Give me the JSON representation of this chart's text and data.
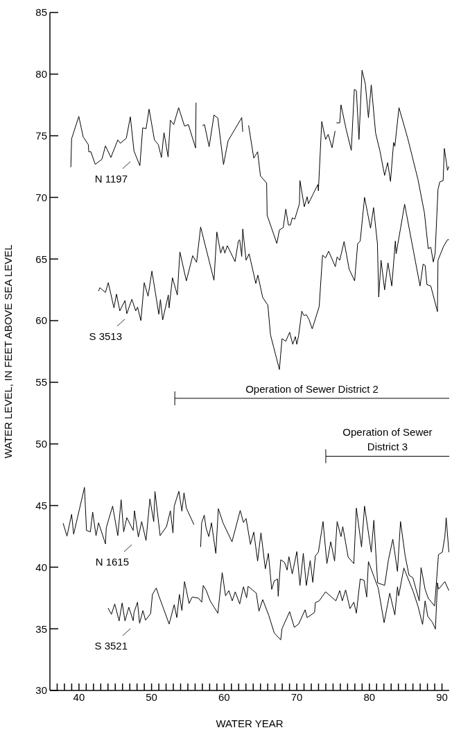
{
  "chart_data": {
    "type": "line",
    "xlabel": "WATER YEAR",
    "ylabel": "WATER LEVEL, IN FEET ABOVE SEA LEVEL",
    "xlim": [
      36,
      91
    ],
    "ylim": [
      30,
      85
    ],
    "xticks": [
      {
        "value": 37,
        "label": null
      },
      {
        "value": 38,
        "label": null
      },
      {
        "value": 39,
        "label": null
      },
      40,
      {
        "value": 41,
        "label": null
      },
      {
        "value": 42,
        "label": null
      },
      {
        "value": 43,
        "label": null
      },
      {
        "value": 44,
        "label": null
      },
      {
        "value": 45,
        "label": null
      },
      {
        "value": 46,
        "label": null
      },
      {
        "value": 47,
        "label": null
      },
      {
        "value": 48,
        "label": null
      },
      {
        "value": 49,
        "label": null
      },
      50,
      {
        "value": 51,
        "label": null
      },
      {
        "value": 52,
        "label": null
      },
      {
        "value": 53,
        "label": null
      },
      {
        "value": 54,
        "label": null
      },
      {
        "value": 55,
        "label": null
      },
      {
        "value": 56,
        "label": null
      },
      {
        "value": 57,
        "label": null
      },
      {
        "value": 58,
        "label": null
      },
      {
        "value": 59,
        "label": null
      },
      60,
      {
        "value": 61,
        "label": null
      },
      {
        "value": 62,
        "label": null
      },
      {
        "value": 63,
        "label": null
      },
      {
        "value": 64,
        "label": null
      },
      {
        "value": 65,
        "label": null
      },
      {
        "value": 66,
        "label": null
      },
      {
        "value": 67,
        "label": null
      },
      {
        "value": 68,
        "label": null
      },
      {
        "value": 69,
        "label": null
      },
      70,
      {
        "value": 71,
        "label": null
      },
      {
        "value": 72,
        "label": null
      },
      {
        "value": 73,
        "label": null
      },
      {
        "value": 74,
        "label": null
      },
      {
        "value": 75,
        "label": null
      },
      {
        "value": 76,
        "label": null
      },
      {
        "value": 77,
        "label": null
      },
      {
        "value": 78,
        "label": null
      },
      {
        "value": 79,
        "label": null
      },
      80,
      {
        "value": 81,
        "label": null
      },
      {
        "value": 82,
        "label": null
      },
      {
        "value": 83,
        "label": null
      },
      {
        "value": 84,
        "label": null
      },
      {
        "value": 85,
        "label": null
      },
      {
        "value": 86,
        "label": null
      },
      {
        "value": 87,
        "label": null
      },
      {
        "value": 88,
        "label": null
      },
      {
        "value": 89,
        "label": null
      },
      90
    ],
    "yticks": [
      30,
      35,
      40,
      45,
      50,
      55,
      60,
      65,
      70,
      75,
      80,
      85
    ],
    "marker": "none",
    "line_style": "solid",
    "series": [
      {
        "color": "#000000",
        "x": [
          38.88,
          38.99,
          39.98,
          40.58,
          41.29,
          41.35,
          41.64,
          42.24,
          43.16,
          43.65,
          44.4,
          45.35,
          45.7,
          46.52,
          47.08,
          47.58,
          48.39,
          48.78,
          49.24,
          49.66,
          50.4,
          50.93,
          51.36,
          51.71,
          52.28,
          52.59,
          53.05,
          53.73,
          54.54,
          55.07,
          56.06,
          56.13,
          56.5,
          57.01,
          57.29,
          57.93,
          58.6,
          59.13,
          59.91,
          60.54,
          62.42,
          62.56,
          62.9,
          63.37,
          64.08,
          64.61,
          65.0,
          65.85,
          65.92,
          67.26,
          67.61,
          68.14,
          68.49,
          68.85,
          69.13,
          69.38,
          69.73,
          70.37,
          70.44,
          71.04,
          71.43,
          71.61,
          72.21,
          72.91,
          72.98,
          73.44,
          73.97,
          74.33,
          74.86,
          75.28,
          75.35,
          75.46,
          75.92,
          76.09,
          76.8,
          77.51,
          77.93,
          78.21,
          78.57,
          78.99,
          79.45,
          79.87,
          80.26,
          80.86,
          81.46,
          82.1,
          82.52,
          82.91,
          83.34,
          83.51,
          84.08,
          85.28,
          86.69,
          87.58,
          88.11,
          88.46,
          88.81,
          89.06,
          89.45,
          89.7,
          90.16,
          90.33,
          90.76,
          90.95
        ],
        "values": [
          72.45,
          74.76,
          76.57,
          74.91,
          74.28,
          73.7,
          73.7,
          72.68,
          73.09,
          74.18,
          73.24,
          74.66,
          74.39,
          74.8,
          76.53,
          73.76,
          72.57,
          75.64,
          75.57,
          77.16,
          74.66,
          74.28,
          73.24,
          75.26,
          73.28,
          76.26,
          75.91,
          77.28,
          75.78,
          75.91,
          74.01,
          77.68,
          null,
          75.82,
          75.91,
          74.11,
          76.68,
          76.43,
          72.66,
          74.59,
          76.47,
          75.32,
          null,
          75.84,
          73.18,
          73.7,
          71.74,
          71.16,
          68.55,
          66.26,
          67.36,
          67.55,
          69.05,
          67.76,
          67.76,
          68.34,
          68.24,
          69.49,
          71.36,
          69.24,
          70.05,
          69.49,
          70.22,
          71.05,
          70.53,
          76.16,
          74.7,
          75.11,
          74.03,
          75.39,
          null,
          76.05,
          76.05,
          77.51,
          75.53,
          73.82,
          78.76,
          78.66,
          74.7,
          80.32,
          79.18,
          76.47,
          79.13,
          75.22,
          73.76,
          71.78,
          72.82,
          71.3,
          74.45,
          74.14,
          77.28,
          74.8,
          71.47,
          68.76,
          65.84,
          65.95,
          64.76,
          65.47,
          70.63,
          71.26,
          71.36,
          73.97,
          72.2,
          72.51
        ]
      },
      {
        "color": "#000000",
        "x": [
          42.7,
          42.88,
          43.23,
          43.65,
          44.04,
          44.82,
          45.17,
          45.63,
          46.34,
          46.59,
          47.29,
          47.82,
          48.07,
          48.53,
          48.99,
          49.52,
          50.05,
          51.0,
          51.22,
          51.53,
          52.31,
          52.42,
          52.88,
          53.55,
          53.9,
          54.79,
          55.67,
          56.2,
          56.76,
          58.6,
          58.99,
          59.52,
          59.84,
          60.09,
          60.44,
          61.5,
          61.96,
          62.14,
          62.42,
          62.56,
          63.02,
          63.44,
          64.36,
          64.64,
          65.31,
          66.02,
          66.38,
          67.61,
          67.97,
          68.49,
          69.02,
          69.45,
          69.8,
          70.01,
          70.26,
          70.69,
          70.97,
          71.32,
          71.68,
          72.13,
          73.09,
          73.55,
          73.97,
          74.4,
          75.31,
          75.56,
          75.92,
          76.52,
          77.22,
          77.97,
          78.39,
          78.74,
          79.34,
          80.16,
          80.58,
          81.11,
          81.29,
          81.61,
          82.1,
          82.56,
          83.09,
          83.58,
          83.69,
          84.86,
          86.98,
          87.4,
          87.68,
          87.93,
          88.46,
          89.38,
          89.45,
          90.23,
          90.76,
          90.95
        ],
        "values": [
          62.4,
          62.67,
          62.5,
          62.29,
          63.08,
          61.04,
          62.15,
          60.79,
          61.63,
          60.56,
          61.73,
          60.79,
          61.1,
          60.0,
          63.08,
          61.98,
          64.02,
          60.52,
          61.71,
          60.06,
          62.08,
          61.04,
          63.48,
          62.08,
          65.58,
          63.23,
          65.27,
          64.73,
          67.6,
          63.27,
          67.19,
          65.48,
          66.04,
          65.48,
          66.08,
          64.79,
          66.46,
          66.56,
          65.21,
          67.44,
          64.9,
          65.42,
          63.02,
          63.69,
          61.88,
          61.25,
          58.85,
          56.04,
          58.54,
          58.33,
          59.06,
          58.08,
          58.71,
          58.08,
          58.81,
          60.77,
          60.42,
          60.48,
          60.1,
          59.33,
          61.15,
          65.31,
          65.1,
          65.63,
          64.38,
          65.17,
          64.9,
          66.42,
          64.17,
          63.23,
          66.25,
          66.46,
          70.0,
          67.5,
          69.17,
          66.25,
          61.92,
          64.9,
          62.5,
          64.69,
          62.81,
          66.46,
          65.42,
          69.44,
          62.81,
          64.58,
          64.48,
          62.92,
          62.81,
          60.73,
          64.9,
          66.04,
          66.56,
          66.56
        ]
      },
      {
        "color": "#000000",
        "x": [
          37.82,
          38.35,
          38.99,
          39.27,
          40.76,
          41.04,
          41.57,
          41.89,
          42.35,
          42.7,
          43.65,
          43.76,
          44.11,
          44.64,
          45.35,
          45.81,
          46.16,
          46.59,
          47.47,
          47.65,
          48.18,
          48.64,
          49.24,
          49.77,
          50.3,
          50.47,
          51.18,
          52.06,
          52.59,
          52.95,
          53.12,
          53.76,
          53.94,
          54.18,
          54.47,
          54.79,
          55.84,
          56.3,
          56.76,
          56.9,
          57.26,
          57.51,
          57.89,
          58.25,
          58.85,
          59.2,
          59.84,
          61.08,
          62.21,
          62.66,
          63.02,
          63.62,
          64.08,
          64.61,
          65.07,
          65.67,
          66.09,
          66.55,
          66.9,
          67.36,
          67.44,
          67.79,
          68.32,
          68.67,
          68.92,
          69.38,
          70.01,
          70.44,
          70.9,
          71.32,
          71.85,
          72.21,
          72.56,
          72.98,
          73.62,
          74.15,
          74.68,
          75.21,
          75.56,
          76.09,
          76.34,
          77.08,
          77.86,
          78.21,
          78.92,
          79.34,
          80.26,
          80.62,
          81.14,
          82.1,
          82.63,
          83.23,
          83.87,
          84.29,
          84.93,
          85.46,
          85.99,
          86.87,
          87.12,
          87.68,
          88.11,
          88.99,
          89.52,
          90.05,
          90.4,
          90.58,
          90.95
        ],
        "values": [
          43.56,
          42.52,
          44.29,
          42.68,
          46.47,
          42.98,
          42.87,
          44.47,
          42.56,
          43.6,
          41.89,
          43.18,
          43.91,
          44.95,
          42.56,
          45.47,
          42.87,
          44.02,
          42.98,
          44.58,
          42.45,
          43.7,
          42.16,
          45.54,
          43.7,
          46.14,
          42.56,
          43.29,
          44.58,
          42.77,
          44.95,
          46.16,
          45.47,
          44.54,
          46.04,
          44.79,
          43.45,
          null,
          41.64,
          43.6,
          44.22,
          43.18,
          42.48,
          43.6,
          41.12,
          44.75,
          43.6,
          42.06,
          44.6,
          43.62,
          43.95,
          41.85,
          42.85,
          40.5,
          42.79,
          39.87,
          41.12,
          38.2,
          38.89,
          39.04,
          37.64,
          40.6,
          40.39,
          39.77,
          40.85,
          39.45,
          41.27,
          38.52,
          41.12,
          38.52,
          40.54,
          38.77,
          40.91,
          41.22,
          43.7,
          40.29,
          42.06,
          40.5,
          43.7,
          42.48,
          43.29,
          40.81,
          40.29,
          44.79,
          41.64,
          44.95,
          41.22,
          43.81,
          38.73,
          38.52,
          40.6,
          42.27,
          39.66,
          43.7,
          40.91,
          39.35,
          39.14,
          37.27,
          39.97,
          38.2,
          37.48,
          36.85,
          41.02,
          41.22,
          42.48,
          44.02,
          41.22
        ]
      },
      {
        "color": "#000000",
        "x": [
          44.01,
          44.47,
          44.93,
          45.53,
          45.95,
          46.34,
          46.87,
          47.47,
          47.58,
          48.07,
          48.35,
          48.81,
          49.17,
          49.87,
          50.12,
          50.65,
          51.0,
          51.71,
          52.42,
          53.12,
          53.48,
          53.83,
          54.18,
          54.54,
          55.17,
          55.6,
          56.48,
          56.91,
          57.12,
          57.54,
          58.07,
          59.13,
          59.73,
          60.19,
          60.65,
          61.11,
          61.53,
          62.14,
          62.66,
          63.09,
          63.3,
          64.43,
          64.79,
          65.31,
          66.13,
          66.9,
          67.79,
          67.97,
          69.02,
          69.66,
          70.26,
          71.15,
          71.43,
          72.45,
          72.56,
          73.09,
          73.97,
          75.39,
          75.92,
          76.27,
          76.73,
          77.33,
          77.86,
          78.21,
          78.74,
          79.27,
          79.63,
          79.87,
          80.62,
          81.22,
          82.03,
          82.81,
          83.51,
          83.87,
          84.04,
          84.75,
          85.99,
          86.69,
          87.33,
          87.68,
          88.04,
          88.71,
          89.1,
          89.38,
          89.52,
          90.4,
          90.95
        ],
        "values": [
          36.68,
          36.18,
          37.02,
          35.64,
          37.1,
          35.64,
          36.75,
          35.66,
          36.33,
          37.16,
          35.45,
          36.48,
          35.7,
          36.23,
          37.79,
          38.31,
          37.68,
          36.54,
          35.39,
          36.95,
          35.91,
          37.79,
          36.48,
          38.83,
          37.06,
          37.58,
          37.48,
          37.16,
          38.52,
          38.1,
          37.27,
          36.27,
          39.56,
          37.68,
          38.1,
          37.27,
          38.0,
          37.02,
          38.41,
          37.52,
          38.45,
          37.89,
          36.43,
          37.37,
          36.12,
          34.66,
          34.1,
          35.02,
          36.39,
          35.12,
          35.39,
          36.54,
          35.91,
          36.33,
          37.12,
          37.27,
          38.0,
          37.27,
          38.1,
          37.27,
          38.16,
          36.64,
          37.16,
          36.27,
          39.04,
          38.93,
          37.58,
          40.45,
          39.25,
          38.31,
          35.5,
          37.89,
          36.12,
          38.41,
          37.68,
          39.93,
          38.1,
          36.85,
          35.35,
          37.27,
          36.02,
          35.5,
          34.98,
          38.73,
          38.21,
          38.83,
          38.1
        ]
      },
      {
        "name": "Operation of Sewer District 2",
        "color": "#000000",
        "x": [
          53.2,
          91
        ],
        "values": [
          53.7,
          53.7
        ]
      },
      {
        "name": "Operation of Sewer District 3",
        "color": "#000000",
        "x": [
          74.0,
          91
        ],
        "values": [
          49.0,
          49.0
        ]
      }
    ],
    "annotations": [
      "N 1197",
      "S 3513",
      "N 1615",
      "S 3521"
    ],
    "legend": false
  }
}
